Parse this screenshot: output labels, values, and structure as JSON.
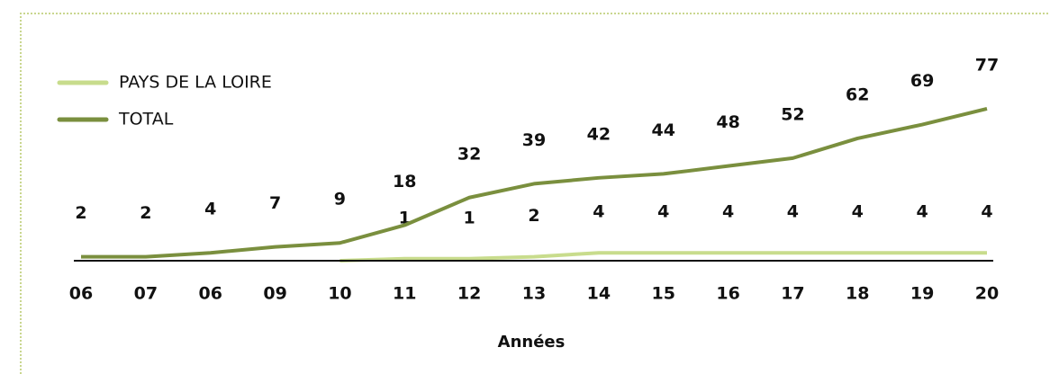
{
  "chart_data": {
    "type": "line",
    "xlabel": "Années",
    "categories": [
      "06",
      "07",
      "06",
      "09",
      "10",
      "11",
      "12",
      "13",
      "14",
      "15",
      "16",
      "17",
      "18",
      "19",
      "20"
    ],
    "series": [
      {
        "name": "PAYS DE LA LOIRE",
        "color": "#c8dc8c",
        "values": [
          null,
          null,
          null,
          null,
          0,
          1,
          1,
          2,
          4,
          4,
          4,
          4,
          4,
          4,
          4
        ],
        "value_labels": [
          null,
          null,
          null,
          null,
          null,
          "1",
          "1",
          "2",
          "4",
          "4",
          "4",
          "4",
          "4",
          "4",
          "4"
        ]
      },
      {
        "name": "TOTAL",
        "color": "#7a8f3e",
        "values": [
          2,
          2,
          4,
          7,
          9,
          18,
          32,
          39,
          42,
          44,
          48,
          52,
          62,
          69,
          77
        ]
      }
    ],
    "ylim": [
      0,
      80
    ],
    "grid": false
  }
}
